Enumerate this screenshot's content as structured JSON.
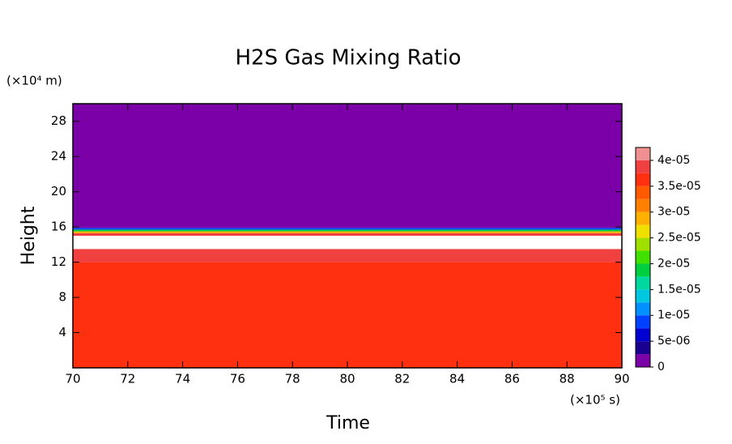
{
  "chart_data": {
    "type": "contour",
    "title": "H2S Gas Mixing Ratio",
    "x_label": "Time",
    "y_label": "Height",
    "x_unit": "(×10⁵ s)",
    "y_unit": "(×10⁴ m)",
    "xlim": [
      70,
      90
    ],
    "xticks": [
      70,
      72,
      74,
      76,
      78,
      80,
      82,
      84,
      86,
      88,
      90
    ],
    "ylim": [
      0,
      30
    ],
    "yticks": [
      4,
      8,
      12,
      16,
      20,
      24,
      28
    ],
    "y_edges": [
      0,
      12,
      13.5,
      15,
      15.3,
      15.5,
      15.7,
      15.9,
      16.1,
      30
    ],
    "z": [
      3.6e-05,
      3.9e-05,
      4.3e-05,
      3.8e-05,
      2.8e-05,
      1.8e-05,
      8e-06,
      2e-06,
      0
    ],
    "colorbar": {
      "levels": [
        0,
        2.5e-06,
        5e-06,
        7.5e-06,
        1e-05,
        1.25e-05,
        1.5e-05,
        1.75e-05,
        2e-05,
        2.25e-05,
        2.5e-05,
        2.75e-05,
        3e-05,
        3.25e-05,
        3.5e-05,
        3.75e-05,
        4e-05,
        4.25e-05
      ],
      "colors": [
        "#7b00a8",
        "#1a0090",
        "#0000d0",
        "#0040ff",
        "#0090ff",
        "#00c8e0",
        "#00d8a0",
        "#00d040",
        "#40e000",
        "#a0e000",
        "#f0e000",
        "#ffb000",
        "#ff8000",
        "#ff5a00",
        "#ff3010",
        "#f04040",
        "#f09090"
      ],
      "ticks": [
        0,
        {
          "value": 5e-06,
          "label": "5e-06"
        },
        {
          "value": 1e-05,
          "label": "1e-05"
        },
        {
          "value": 1.5e-05,
          "label": "1.5e-05"
        },
        {
          "value": 2e-05,
          "label": "2e-05"
        },
        {
          "value": 2.5e-05,
          "label": "2.5e-05"
        },
        {
          "value": 3e-05,
          "label": "3e-05"
        },
        {
          "value": 3.5e-05,
          "label": "3.5e-05"
        },
        {
          "value": 4e-05,
          "label": "4e-05"
        }
      ],
      "over_color": "#ffffff"
    }
  }
}
